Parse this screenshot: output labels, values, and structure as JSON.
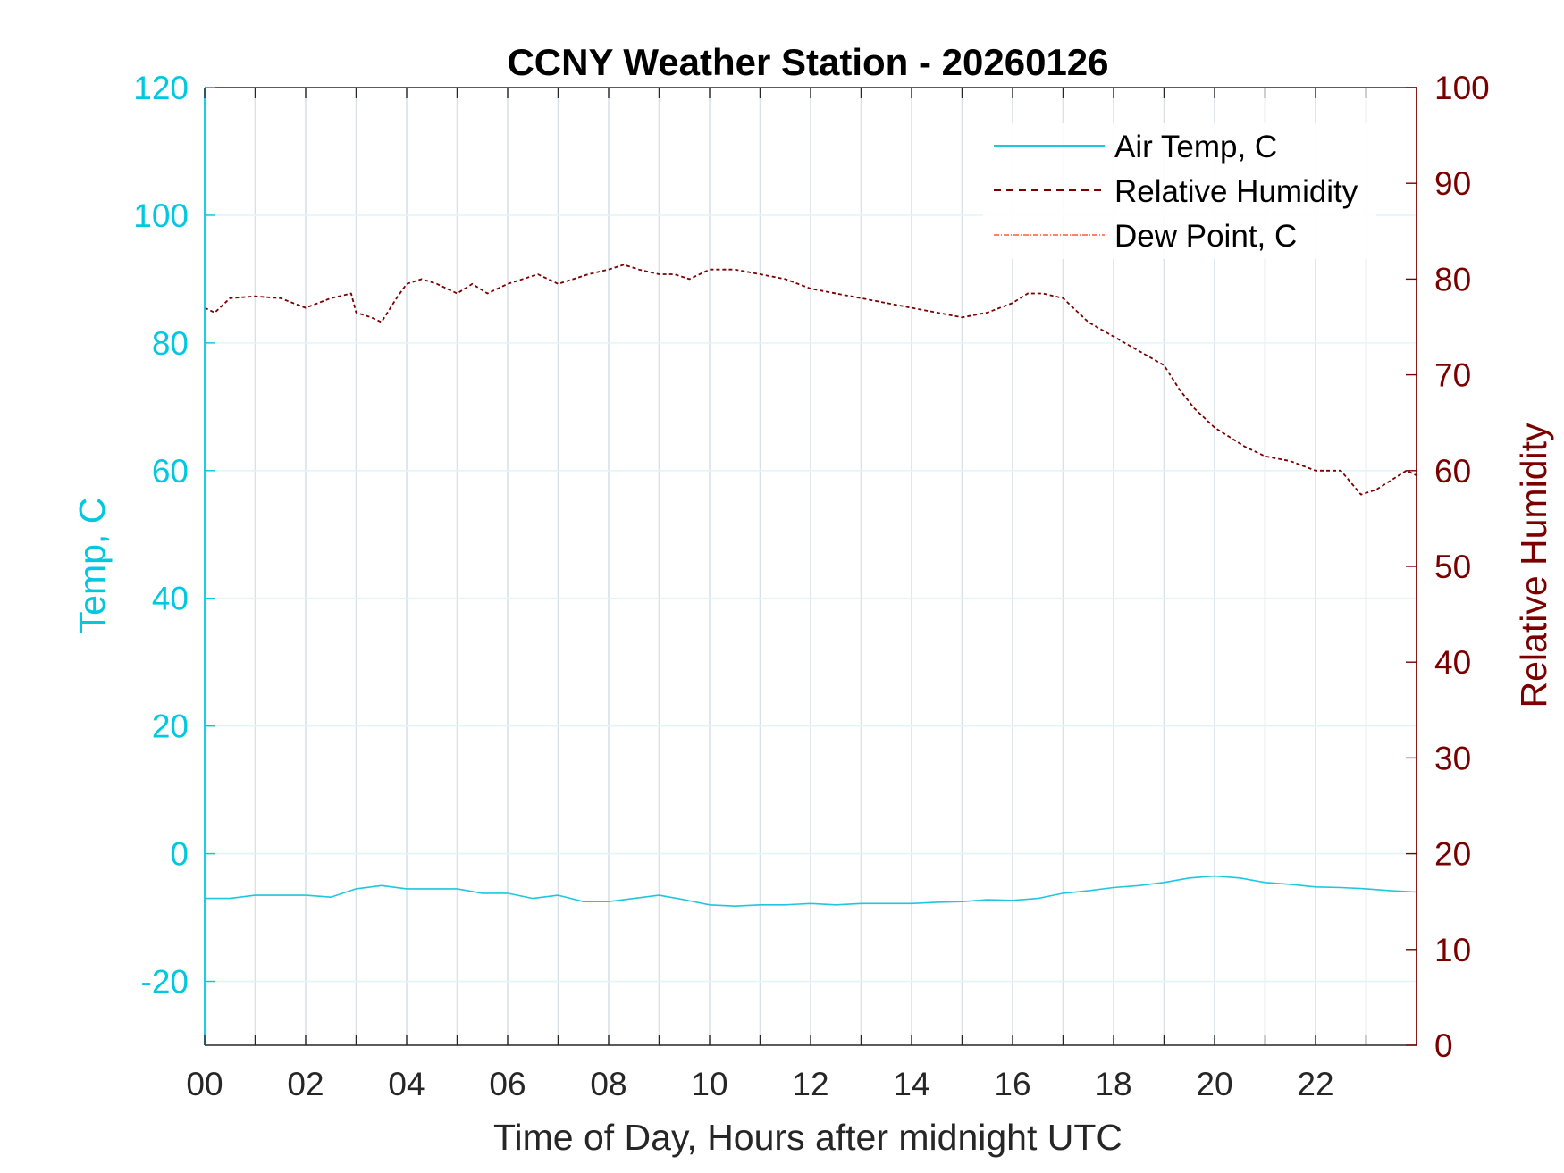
{
  "chart_data": {
    "type": "line",
    "title": "CCNY Weather Station - 20260126",
    "xlabel": "Time of Day, Hours after midnight UTC",
    "ylabel_left": "Temp, C",
    "ylabel_right": "Relative Humidity",
    "xlim": [
      0,
      24
    ],
    "ylim_left": [
      -30,
      120
    ],
    "ylim_right": [
      0,
      100
    ],
    "x_ticks": [
      0,
      2,
      4,
      6,
      8,
      10,
      12,
      14,
      16,
      18,
      20,
      22
    ],
    "x_tick_labels": [
      "00",
      "02",
      "04",
      "06",
      "08",
      "10",
      "12",
      "14",
      "16",
      "18",
      "20",
      "22"
    ],
    "y_left_ticks": [
      -20,
      0,
      20,
      40,
      60,
      80,
      100,
      120
    ],
    "y_left_tick_labels": [
      "-20",
      "0",
      "20",
      "40",
      "60",
      "80",
      "100",
      "120"
    ],
    "y_right_ticks": [
      0,
      10,
      20,
      30,
      40,
      50,
      60,
      70,
      80,
      90,
      100
    ],
    "y_right_tick_labels": [
      "0",
      "10",
      "20",
      "30",
      "40",
      "50",
      "60",
      "70",
      "80",
      "90",
      "100"
    ],
    "grid": "vertical hourly lines, horizontal lines at left-axis ticks",
    "legend_position": "top-right",
    "legend": [
      "Air Temp, C",
      "Relative Humidity",
      "Dew Point, C"
    ],
    "series": [
      {
        "name": "Air Temp, C",
        "axis": "left",
        "color": "#1ec8dc",
        "style": "solid",
        "x": [
          0,
          0.5,
          1,
          1.5,
          2,
          2.5,
          3,
          3.5,
          4,
          4.5,
          5,
          5.5,
          6,
          6.5,
          7,
          7.5,
          8,
          8.5,
          9,
          9.5,
          10,
          10.5,
          11,
          11.5,
          12,
          12.5,
          13,
          13.5,
          14,
          14.5,
          15,
          15.5,
          16,
          16.5,
          17,
          17.5,
          18,
          18.5,
          19,
          19.5,
          20,
          20.5,
          21,
          21.5,
          22,
          22.5,
          23,
          23.5,
          24
        ],
        "y": [
          -7.0,
          -7.0,
          -6.5,
          -6.5,
          -6.5,
          -6.8,
          -5.5,
          -5.0,
          -5.5,
          -5.5,
          -5.5,
          -6.2,
          -6.2,
          -7.0,
          -6.5,
          -7.5,
          -7.5,
          -7.0,
          -6.5,
          -7.2,
          -8.0,
          -8.2,
          -8.0,
          -8.0,
          -7.8,
          -8.0,
          -7.8,
          -7.8,
          -7.8,
          -7.6,
          -7.5,
          -7.2,
          -7.3,
          -7.0,
          -6.2,
          -5.8,
          -5.3,
          -5.0,
          -4.5,
          -3.8,
          -3.5,
          -3.8,
          -4.5,
          -4.8,
          -5.2,
          -5.3,
          -5.5,
          -5.8,
          -6.0
        ]
      },
      {
        "name": "Relative Humidity",
        "axis": "right",
        "color": "#7a0000",
        "style": "dashed",
        "x": [
          0,
          0.2,
          0.5,
          1,
          1.5,
          2,
          2.5,
          2.9,
          3.0,
          3.3,
          3.5,
          3.8,
          4.0,
          4.3,
          4.6,
          5.0,
          5.3,
          5.6,
          6.0,
          6.3,
          6.6,
          7.0,
          7.3,
          7.6,
          8.0,
          8.3,
          8.6,
          9.0,
          9.3,
          9.6,
          10.0,
          10.5,
          11.0,
          11.5,
          12.0,
          12.5,
          13.0,
          13.5,
          14.0,
          14.5,
          15.0,
          15.5,
          16.0,
          16.3,
          16.6,
          17.0,
          17.5,
          18.0,
          18.5,
          19.0,
          19.3,
          19.6,
          20.0,
          20.3,
          20.6,
          21.0,
          21.5,
          22.0,
          22.5,
          22.9,
          23.2,
          23.5,
          23.8,
          24.0
        ],
        "y": [
          77.0,
          76.5,
          78.0,
          78.2,
          78.0,
          77.0,
          78.0,
          78.5,
          76.5,
          76.0,
          75.5,
          78.0,
          79.5,
          80.0,
          79.5,
          78.5,
          79.5,
          78.5,
          79.5,
          80.0,
          80.5,
          79.5,
          80.0,
          80.5,
          81.0,
          81.5,
          81.0,
          80.5,
          80.5,
          80.0,
          81.0,
          81.0,
          80.5,
          80.0,
          79.0,
          78.5,
          78.0,
          77.5,
          77.0,
          76.5,
          76.0,
          76.5,
          77.5,
          78.5,
          78.5,
          78.0,
          75.5,
          74.0,
          72.5,
          71.0,
          68.5,
          66.5,
          64.5,
          63.5,
          62.5,
          61.5,
          61.0,
          60.0,
          60.0,
          57.5,
          58.0,
          59.0,
          60.0,
          59.5
        ]
      },
      {
        "name": "Dew Point, C",
        "axis": "left",
        "color": "#ff5a36",
        "style": "dash-dot"
      }
    ]
  }
}
